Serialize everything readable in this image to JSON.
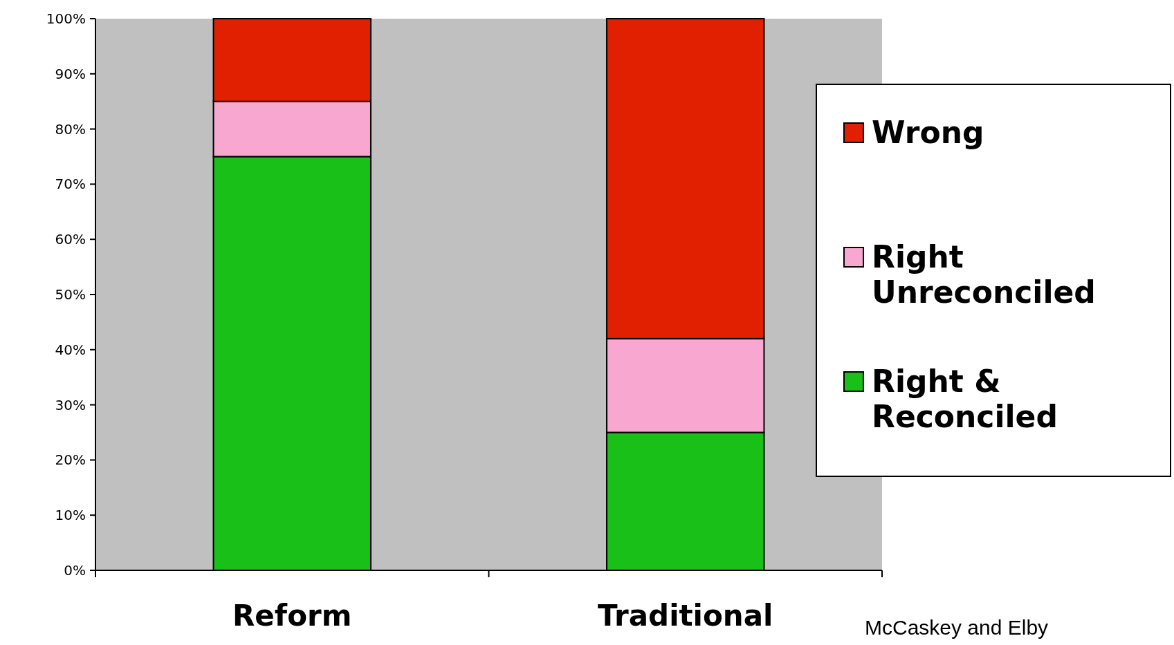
{
  "chart_data": {
    "type": "bar",
    "stacked": true,
    "categories": [
      "Reform",
      "Traditional"
    ],
    "series": [
      {
        "name": "Right & Reconciled",
        "color": "#18c018",
        "values": [
          75,
          25
        ]
      },
      {
        "name": "Right Unreconciled",
        "color": "#f8a8d0",
        "values": [
          10,
          17
        ]
      },
      {
        "name": "Wrong",
        "color": "#e02000",
        "values": [
          15,
          58
        ]
      }
    ],
    "ylim": [
      0,
      100
    ],
    "yticks": [
      {
        "value": 0,
        "label": "0%"
      },
      {
        "value": 10,
        "label": "10%"
      },
      {
        "value": 20,
        "label": "20%"
      },
      {
        "value": 30,
        "label": "30%"
      },
      {
        "value": 40,
        "label": "40%"
      },
      {
        "value": 50,
        "label": "50%"
      },
      {
        "value": 60,
        "label": "60%"
      },
      {
        "value": 70,
        "label": "70%"
      },
      {
        "value": 80,
        "label": "80%"
      },
      {
        "value": 90,
        "label": "90%"
      },
      {
        "value": 100,
        "label": "100%"
      }
    ],
    "grid": false,
    "legend": "right",
    "annotations": [
      "McCaskey and Elby"
    ]
  }
}
